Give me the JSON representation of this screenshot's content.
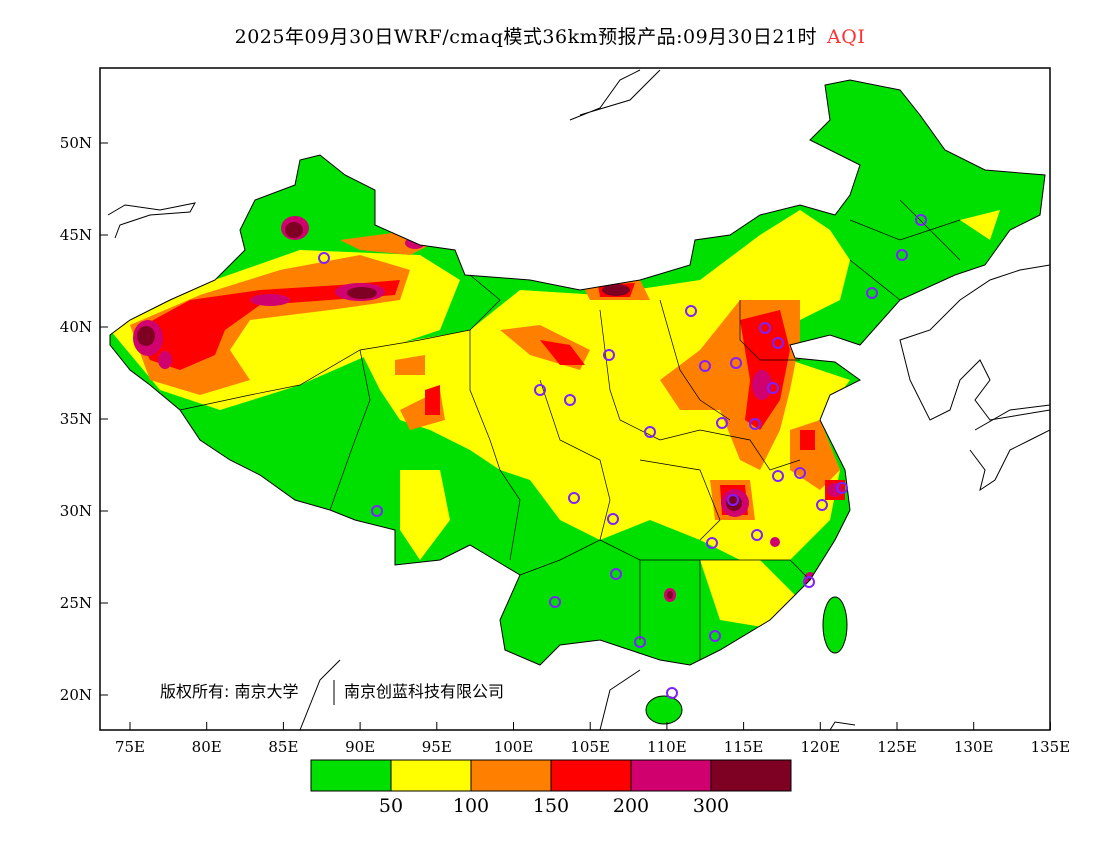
{
  "title": {
    "main": "2025年09月30日WRF/cmaq模式36km预报产品:09月30日21时",
    "variable": "AQI",
    "variable_color": "#ff3030"
  },
  "axes": {
    "lat_ticks": [
      "50N",
      "45N",
      "40N",
      "35N",
      "30N",
      "25N",
      "20N"
    ],
    "lon_ticks": [
      "75E",
      "80E",
      "85E",
      "90E",
      "95E",
      "100E",
      "105E",
      "110E",
      "115E",
      "120E",
      "125E",
      "130E",
      "135E"
    ]
  },
  "colorbar": {
    "colors": [
      "#00e000",
      "#ffff00",
      "#ff8000",
      "#ff0000",
      "#d0006e",
      "#7e0023"
    ],
    "labels": [
      "50",
      "100",
      "150",
      "200",
      "300"
    ]
  },
  "copyright": {
    "owner1": "版权所有: 南京大学",
    "owner2": "南京创蓝科技有限公司"
  },
  "station_marker_color": "#8020ff"
}
